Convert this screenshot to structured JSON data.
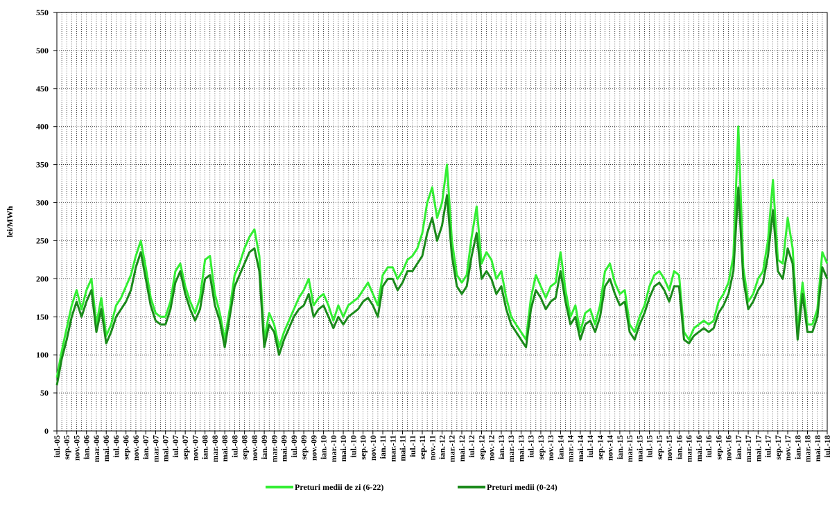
{
  "chart_data": {
    "type": "line",
    "y_label": "lei/MWh",
    "categories": [
      "iul.-05",
      null,
      "sep.-05",
      null,
      "nov.-05",
      null,
      "ian.-06",
      null,
      "mar.-06",
      null,
      "mai.-06",
      null,
      "iul.-06",
      null,
      "sep.-06",
      null,
      "nov.-06",
      null,
      "ian.-07",
      null,
      "mar.-07",
      null,
      "mai.-07",
      null,
      "iul.-07",
      null,
      "sep.-07",
      null,
      "nov.-07",
      null,
      "ian.-08",
      null,
      "mar.-08",
      null,
      "mai.-08",
      null,
      "iul.-08",
      null,
      "sep.-08",
      null,
      "nov.-08",
      null,
      "ian.-09",
      null,
      "mar.-09",
      null,
      "mai.-09",
      null,
      "iul.-09",
      null,
      "sep.-09",
      null,
      "nov.-09",
      null,
      "ian.-10",
      null,
      "mar.-10",
      null,
      "mai.-10",
      null,
      "iul.-10",
      null,
      "sep.-10",
      null,
      "nov.-10",
      null,
      "ian.-11",
      null,
      "mar.-11",
      null,
      "mai.-11",
      null,
      "iul.-11",
      null,
      "sep.-11",
      null,
      "nov.-11",
      null,
      "ian.-12",
      null,
      "mar.-12",
      null,
      "mai.-12",
      null,
      "iul.-12",
      null,
      "sep.-12",
      null,
      "nov.-12",
      null,
      "ian.-13",
      null,
      "mar.-13",
      null,
      "mai.-13",
      null,
      "iul.-13",
      null,
      "sep.-13",
      null,
      "nov.-13",
      null,
      "ian.-14",
      null,
      "mar.-14",
      null,
      "mai.-14",
      null,
      "iul.-14",
      null,
      "sep.-14",
      null,
      "nov.-14",
      null,
      "ian.-15",
      null,
      "mar.-15",
      null,
      "mai.-15",
      null,
      "iul.-15",
      null,
      "sep.-15",
      null,
      "nov.-15",
      null,
      "ian.-16",
      null,
      "mar.-16",
      null,
      "mai.-16",
      null,
      "iul.-16",
      null,
      "sep.-16",
      null,
      "nov.-16",
      null,
      "ian.-17",
      null,
      "mar.-17",
      null,
      "mai.-17",
      null,
      "iul.-17",
      null,
      "sep.-17",
      null,
      "nov.-17",
      null,
      "ian.-18",
      null,
      "mar.-18",
      null,
      "mai.-18",
      null,
      "iul.-18"
    ],
    "series": [
      {
        "name": "Preturi medii de zi (6-22)",
        "color": "#33ee33",
        "values": [
          70,
          105,
          135,
          165,
          185,
          160,
          185,
          200,
          140,
          175,
          125,
          140,
          165,
          175,
          190,
          205,
          230,
          250,
          215,
          175,
          155,
          150,
          150,
          170,
          210,
          220,
          190,
          170,
          155,
          175,
          225,
          230,
          180,
          155,
          120,
          160,
          205,
          220,
          240,
          255,
          265,
          230,
          120,
          155,
          140,
          110,
          130,
          145,
          160,
          175,
          185,
          200,
          165,
          175,
          180,
          165,
          145,
          165,
          150,
          165,
          170,
          175,
          185,
          195,
          180,
          165,
          205,
          215,
          215,
          200,
          210,
          225,
          230,
          240,
          260,
          300,
          320,
          280,
          300,
          350,
          250,
          205,
          195,
          205,
          255,
          295,
          220,
          235,
          225,
          200,
          210,
          175,
          150,
          140,
          130,
          120,
          175,
          205,
          190,
          175,
          190,
          195,
          235,
          185,
          150,
          165,
          130,
          155,
          160,
          140,
          165,
          210,
          220,
          195,
          180,
          185,
          140,
          130,
          150,
          165,
          190,
          205,
          210,
          200,
          185,
          210,
          205,
          130,
          120,
          135,
          140,
          145,
          140,
          145,
          170,
          180,
          195,
          230,
          400,
          215,
          170,
          180,
          200,
          210,
          250,
          330,
          225,
          220,
          280,
          240,
          130,
          195,
          140,
          140,
          160,
          235,
          220
        ]
      },
      {
        "name": "Preturi medii (0-24)",
        "color": "#1a8a1a",
        "values": [
          60,
          95,
          120,
          150,
          170,
          150,
          170,
          185,
          130,
          160,
          115,
          130,
          150,
          160,
          170,
          185,
          215,
          235,
          200,
          165,
          145,
          140,
          140,
          160,
          195,
          210,
          180,
          160,
          145,
          160,
          200,
          205,
          165,
          145,
          110,
          150,
          190,
          205,
          220,
          235,
          240,
          210,
          110,
          140,
          130,
          100,
          120,
          135,
          150,
          160,
          165,
          180,
          150,
          160,
          165,
          150,
          135,
          150,
          140,
          150,
          155,
          160,
          170,
          175,
          165,
          150,
          190,
          200,
          200,
          185,
          195,
          210,
          210,
          220,
          230,
          260,
          280,
          250,
          270,
          310,
          230,
          190,
          180,
          190,
          230,
          260,
          200,
          210,
          200,
          180,
          190,
          160,
          140,
          130,
          120,
          110,
          160,
          185,
          175,
          160,
          170,
          175,
          210,
          170,
          140,
          150,
          120,
          140,
          145,
          130,
          150,
          190,
          200,
          180,
          165,
          170,
          130,
          120,
          140,
          155,
          175,
          190,
          195,
          185,
          170,
          190,
          190,
          120,
          115,
          125,
          130,
          135,
          130,
          135,
          155,
          165,
          180,
          210,
          320,
          200,
          160,
          170,
          185,
          195,
          230,
          290,
          210,
          200,
          240,
          220,
          120,
          180,
          130,
          130,
          150,
          215,
          200
        ]
      }
    ],
    "ylim": [
      0,
      550
    ],
    "yticks": [
      0,
      50,
      100,
      150,
      200,
      250,
      300,
      350,
      400,
      450,
      500,
      550
    ],
    "grid": true
  }
}
